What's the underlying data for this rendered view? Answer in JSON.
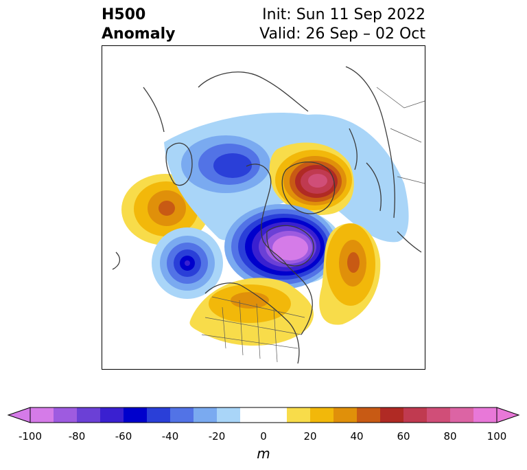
{
  "title": {
    "variable": "H500",
    "type": "Anomaly",
    "init": "Init: Sun 11 Sep 2022",
    "valid": "Valid: 26 Sep – 02 Oct"
  },
  "colorbar": {
    "unit": "m",
    "tick_labels": [
      "-100",
      "-80",
      "-60",
      "-40",
      "-20",
      "0",
      "20",
      "40",
      "60",
      "80",
      "100"
    ],
    "colors": [
      "#d57be8",
      "#9e5be0",
      "#6b40d6",
      "#3a20d0",
      "#0000cc",
      "#2a3fd8",
      "#5273e6",
      "#7aaaf0",
      "#a9d5f8",
      "#ffffff",
      "#ffffff",
      "#f8dc4a",
      "#f2b80a",
      "#e0900a",
      "#c85a14",
      "#b02a24",
      "#c03a50",
      "#d04e78",
      "#dc64a4",
      "#e878d8"
    ]
  },
  "anomaly_centers": [
    {
      "name": "pacific-ridge",
      "sign": "positive",
      "peak_m": 45
    },
    {
      "name": "alaska-trough",
      "sign": "negative",
      "peak_m": -55
    },
    {
      "name": "western-canada-trough",
      "sign": "negative",
      "peak_m": -45
    },
    {
      "name": "greenland-ridge",
      "sign": "positive",
      "peak_m": 75
    },
    {
      "name": "hudson-bay-trough",
      "sign": "negative",
      "peak_m": -95
    },
    {
      "name": "north-atlantic-ridge",
      "sign": "positive",
      "peak_m": 50
    },
    {
      "name": "us-plains-ridge",
      "sign": "positive",
      "peak_m": 45
    }
  ]
}
